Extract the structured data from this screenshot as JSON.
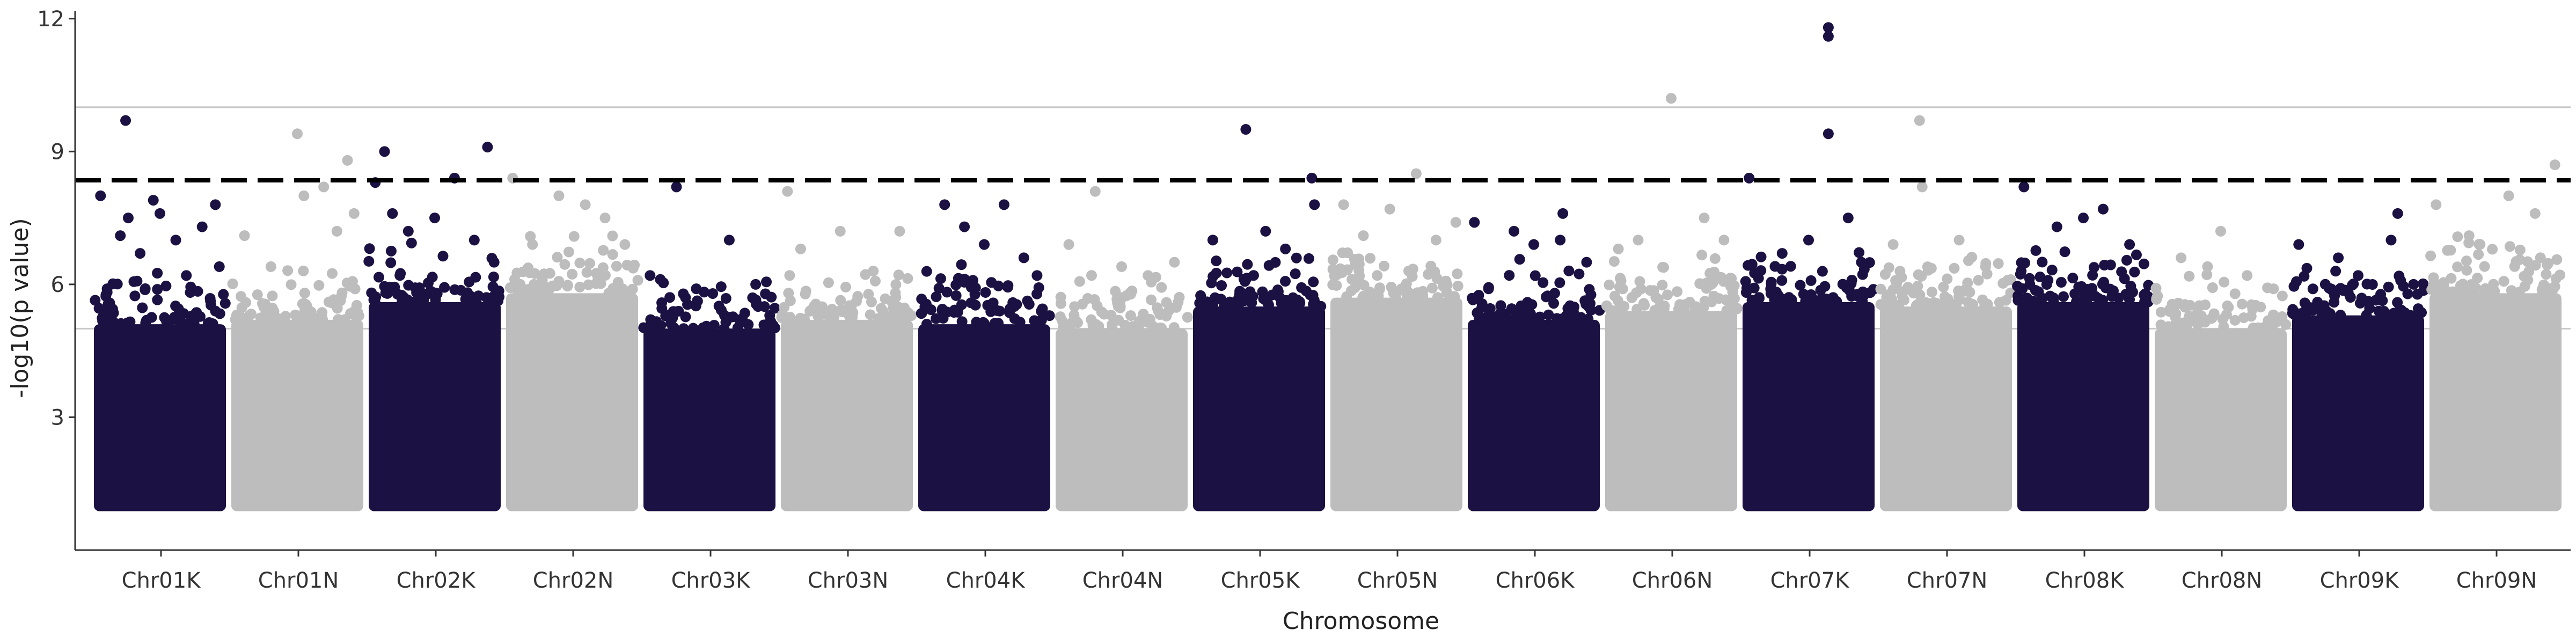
{
  "chart_data": {
    "type": "scatter",
    "subtype": "manhattan",
    "xlabel": "Chromosome",
    "ylabel": "-log10(p value)",
    "ylim": [
      0,
      12.3
    ],
    "yticks": [
      3,
      6,
      9,
      12
    ],
    "grid": "y-only at 5 and 10",
    "reference_lines": [
      {
        "type": "dashed",
        "y": 8.35,
        "color": "#000000"
      },
      {
        "type": "solid",
        "y": 10,
        "color": "#c8c8c8"
      },
      {
        "type": "solid",
        "y": 5,
        "color": "#c8c8c8"
      }
    ],
    "colors": {
      "odd": "#1b1142",
      "even": "#bdbdbd"
    },
    "base_value": 1.0,
    "categories": [
      "Chr01K",
      "Chr01N",
      "Chr02K",
      "Chr02N",
      "Chr03K",
      "Chr03N",
      "Chr04K",
      "Chr04N",
      "Chr05K",
      "Chr05N",
      "Chr06K",
      "Chr06N",
      "Chr07K",
      "Chr07N",
      "Chr08K",
      "Chr08N",
      "Chr09K",
      "Chr09N"
    ],
    "series": [
      {
        "category": "Chr01K",
        "dense_top": 5.1,
        "peaks": [
          [
            0.05,
            8.0
          ],
          [
            0.1,
            5.9
          ],
          [
            0.2,
            7.1
          ],
          [
            0.24,
            9.7
          ],
          [
            0.26,
            7.5
          ],
          [
            0.35,
            6.7
          ],
          [
            0.45,
            7.9
          ],
          [
            0.5,
            7.6
          ],
          [
            0.62,
            7.0
          ],
          [
            0.7,
            6.2
          ],
          [
            0.82,
            7.3
          ],
          [
            0.92,
            7.8
          ],
          [
            0.95,
            6.4
          ]
        ]
      },
      {
        "category": "Chr01N",
        "dense_top": 5.2,
        "peaks": [
          [
            0.1,
            7.1
          ],
          [
            0.3,
            6.4
          ],
          [
            0.5,
            9.4
          ],
          [
            0.55,
            8.0
          ],
          [
            0.7,
            8.2
          ],
          [
            0.8,
            7.2
          ],
          [
            0.88,
            8.8
          ],
          [
            0.93,
            7.6
          ]
        ]
      },
      {
        "category": "Chr02K",
        "dense_top": 5.6,
        "peaks": [
          [
            0.05,
            8.3
          ],
          [
            0.12,
            9.0
          ],
          [
            0.18,
            7.6
          ],
          [
            0.3,
            7.2
          ],
          [
            0.5,
            7.5
          ],
          [
            0.65,
            8.4
          ],
          [
            0.8,
            7.0
          ],
          [
            0.9,
            9.1
          ],
          [
            0.95,
            6.5
          ]
        ]
      },
      {
        "category": "Chr02N",
        "dense_top": 5.8,
        "peaks": [
          [
            0.05,
            8.4
          ],
          [
            0.2,
            6.9
          ],
          [
            0.4,
            8.0
          ],
          [
            0.6,
            7.8
          ],
          [
            0.75,
            7.5
          ],
          [
            0.9,
            6.9
          ]
        ]
      },
      {
        "category": "Chr03K",
        "dense_top": 5.0,
        "peaks": [
          [
            0.05,
            6.2
          ],
          [
            0.25,
            8.2
          ],
          [
            0.4,
            5.9
          ],
          [
            0.65,
            7.0
          ],
          [
            0.85,
            6.0
          ]
        ]
      },
      {
        "category": "Chr03N",
        "dense_top": 5.2,
        "peaks": [
          [
            0.05,
            8.1
          ],
          [
            0.15,
            6.8
          ],
          [
            0.45,
            7.2
          ],
          [
            0.7,
            6.3
          ],
          [
            0.9,
            7.2
          ]
        ]
      },
      {
        "category": "Chr04K",
        "dense_top": 5.1,
        "peaks": [
          [
            0.2,
            7.8
          ],
          [
            0.35,
            7.3
          ],
          [
            0.5,
            6.9
          ],
          [
            0.65,
            7.8
          ],
          [
            0.8,
            6.6
          ],
          [
            0.9,
            6.2
          ]
        ]
      },
      {
        "category": "Chr04N",
        "dense_top": 5.0,
        "peaks": [
          [
            0.1,
            6.9
          ],
          [
            0.3,
            8.1
          ],
          [
            0.5,
            6.4
          ],
          [
            0.7,
            6.2
          ],
          [
            0.9,
            6.5
          ]
        ]
      },
      {
        "category": "Chr05K",
        "dense_top": 5.5,
        "peaks": [
          [
            0.15,
            7.0
          ],
          [
            0.4,
            9.5
          ],
          [
            0.55,
            7.2
          ],
          [
            0.7,
            6.8
          ],
          [
            0.9,
            8.4
          ],
          [
            0.92,
            7.8
          ]
        ]
      },
      {
        "category": "Chr05N",
        "dense_top": 5.7,
        "peaks": [
          [
            0.1,
            7.8
          ],
          [
            0.25,
            7.1
          ],
          [
            0.45,
            7.7
          ],
          [
            0.65,
            8.5
          ],
          [
            0.8,
            7.0
          ],
          [
            0.95,
            7.4
          ]
        ]
      },
      {
        "category": "Chr06K",
        "dense_top": 5.2,
        "peaks": [
          [
            0.05,
            7.4
          ],
          [
            0.35,
            7.2
          ],
          [
            0.5,
            6.9
          ],
          [
            0.7,
            7.0
          ],
          [
            0.72,
            7.6
          ],
          [
            0.9,
            6.5
          ]
        ]
      },
      {
        "category": "Chr06N",
        "dense_top": 5.4,
        "peaks": [
          [
            0.1,
            6.8
          ],
          [
            0.25,
            7.0
          ],
          [
            0.5,
            10.2
          ],
          [
            0.75,
            7.5
          ],
          [
            0.9,
            7.0
          ]
        ]
      },
      {
        "category": "Chr07K",
        "dense_top": 5.6,
        "peaks": [
          [
            0.05,
            8.4
          ],
          [
            0.3,
            6.7
          ],
          [
            0.5,
            7.0
          ],
          [
            0.65,
            11.8
          ],
          [
            0.65,
            11.6
          ],
          [
            0.65,
            9.4
          ],
          [
            0.8,
            7.5
          ],
          [
            0.9,
            6.5
          ]
        ]
      },
      {
        "category": "Chr07N",
        "dense_top": 5.5,
        "peaks": [
          [
            0.1,
            6.9
          ],
          [
            0.3,
            9.7
          ],
          [
            0.32,
            8.2
          ],
          [
            0.6,
            7.0
          ],
          [
            0.8,
            6.4
          ]
        ]
      },
      {
        "category": "Chr08K",
        "dense_top": 5.6,
        "peaks": [
          [
            0.05,
            8.2
          ],
          [
            0.3,
            7.3
          ],
          [
            0.5,
            7.5
          ],
          [
            0.65,
            7.7
          ],
          [
            0.85,
            6.9
          ]
        ]
      },
      {
        "category": "Chr08N",
        "dense_top": 5.0,
        "peaks": [
          [
            0.2,
            6.6
          ],
          [
            0.4,
            6.4
          ],
          [
            0.5,
            7.2
          ],
          [
            0.7,
            6.2
          ],
          [
            0.9,
            5.9
          ]
        ]
      },
      {
        "category": "Chr09K",
        "dense_top": 5.3,
        "peaks": [
          [
            0.05,
            6.9
          ],
          [
            0.35,
            6.6
          ],
          [
            0.5,
            6.2
          ],
          [
            0.75,
            7.0
          ],
          [
            0.8,
            7.6
          ],
          [
            0.92,
            6.0
          ]
        ]
      },
      {
        "category": "Chr09N",
        "dense_top": 5.8,
        "peaks": [
          [
            0.05,
            7.8
          ],
          [
            0.3,
            7.1
          ],
          [
            0.6,
            8.0
          ],
          [
            0.8,
            7.6
          ],
          [
            0.95,
            8.7
          ]
        ]
      }
    ]
  }
}
